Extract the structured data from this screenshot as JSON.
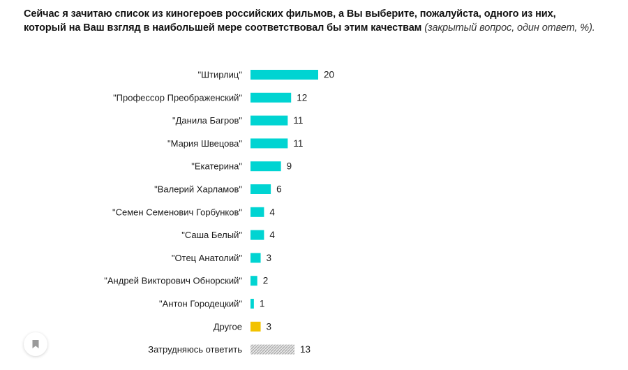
{
  "question": {
    "main": "Сейчас я зачитаю список из киногероев российских фильмов, а Вы выберите, пожалуйста, одного из них, который на Ваш взгляд в наибольшей мере соответствовал бы этим качествам",
    "note": "(закрытый вопрос, один ответ, %)."
  },
  "colors": {
    "primary": "#00d4d2",
    "other": "#f2c200",
    "undecided": "#c8c8c8"
  },
  "icons": {
    "bookmark": "bookmark-icon"
  },
  "chart_data": {
    "type": "bar",
    "orientation": "horizontal",
    "title": "Сейчас я зачитаю список из киногероев российских фильмов, а Вы выберите, пожалуйста, одного из них, который на Ваш взгляд в наибольшей мере соответствовал бы этим качествам (закрытый вопрос, один ответ, %).",
    "xlabel": "",
    "ylabel": "",
    "xlim": [
      0,
      20
    ],
    "grid": false,
    "legend": "none",
    "categories": [
      "\"Штирлиц\"",
      "\"Профессор Преображенский\"",
      "\"Данила Багров\"",
      "\"Мария Швецова\"",
      "\"Екатерина\"",
      "\"Валерий Харламов\"",
      "\"Семен Семенович Горбунков\"",
      "\"Саша Белый\"",
      "\"Отец Анатолий\"",
      "\"Андрей Викторович Обнорский\"",
      "\"Антон Городецкий\"",
      "Другое",
      "Затрудняюсь ответить"
    ],
    "values": [
      20,
      12,
      11,
      11,
      9,
      6,
      4,
      4,
      3,
      2,
      1,
      3,
      13
    ],
    "bar_styles": [
      "primary",
      "primary",
      "primary",
      "primary",
      "primary",
      "primary",
      "primary",
      "primary",
      "primary",
      "primary",
      "primary",
      "other",
      "undecided"
    ]
  }
}
